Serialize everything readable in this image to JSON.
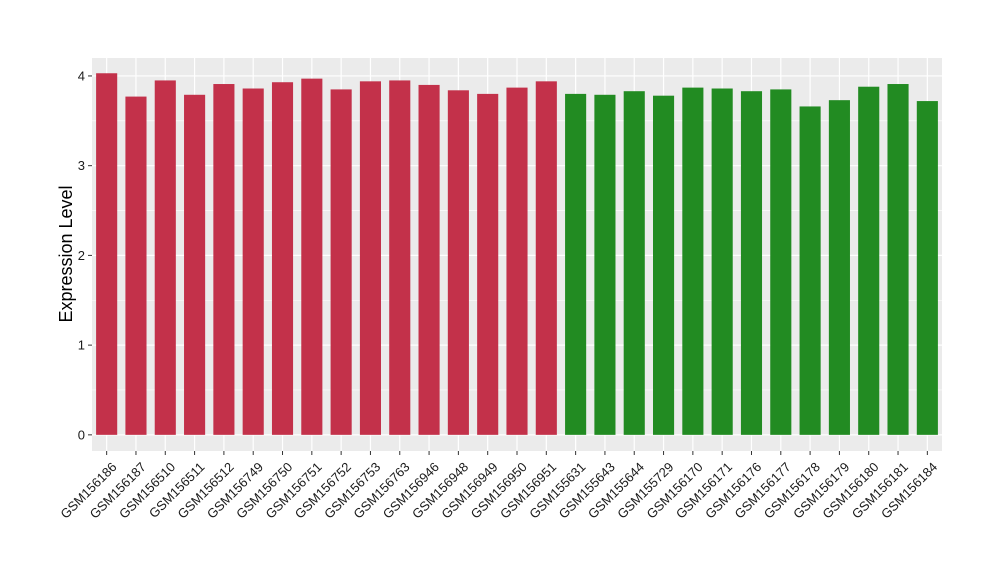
{
  "chart_data": {
    "type": "bar",
    "title": "",
    "xlabel": "",
    "ylabel": "Expression Level",
    "ylim": [
      -0.18,
      4.2
    ],
    "yticks": [
      0,
      1,
      2,
      3,
      4
    ],
    "grid": true,
    "panel_background": "#ebebeb",
    "grid_color": "#ffffff",
    "categories": [
      "GSM156186",
      "GSM156187",
      "GSM156510",
      "GSM156511",
      "GSM156512",
      "GSM156749",
      "GSM156750",
      "GSM156751",
      "GSM156752",
      "GSM156753",
      "GSM156763",
      "GSM156946",
      "GSM156948",
      "GSM156949",
      "GSM156950",
      "GSM156951",
      "GSM155631",
      "GSM155643",
      "GSM155644",
      "GSM155729",
      "GSM156170",
      "GSM156171",
      "GSM156176",
      "GSM156177",
      "GSM156178",
      "GSM156179",
      "GSM156180",
      "GSM156181",
      "GSM156184"
    ],
    "values": [
      4.03,
      3.77,
      3.95,
      3.79,
      3.91,
      3.86,
      3.93,
      3.97,
      3.85,
      3.94,
      3.95,
      3.9,
      3.84,
      3.8,
      3.87,
      3.94,
      3.8,
      3.79,
      3.83,
      3.78,
      3.87,
      3.86,
      3.83,
      3.85,
      3.66,
      3.73,
      3.88,
      3.91,
      3.72
    ],
    "group_sizes": [
      16,
      13
    ],
    "group_colors": [
      "#c3314a",
      "#228b22"
    ]
  }
}
